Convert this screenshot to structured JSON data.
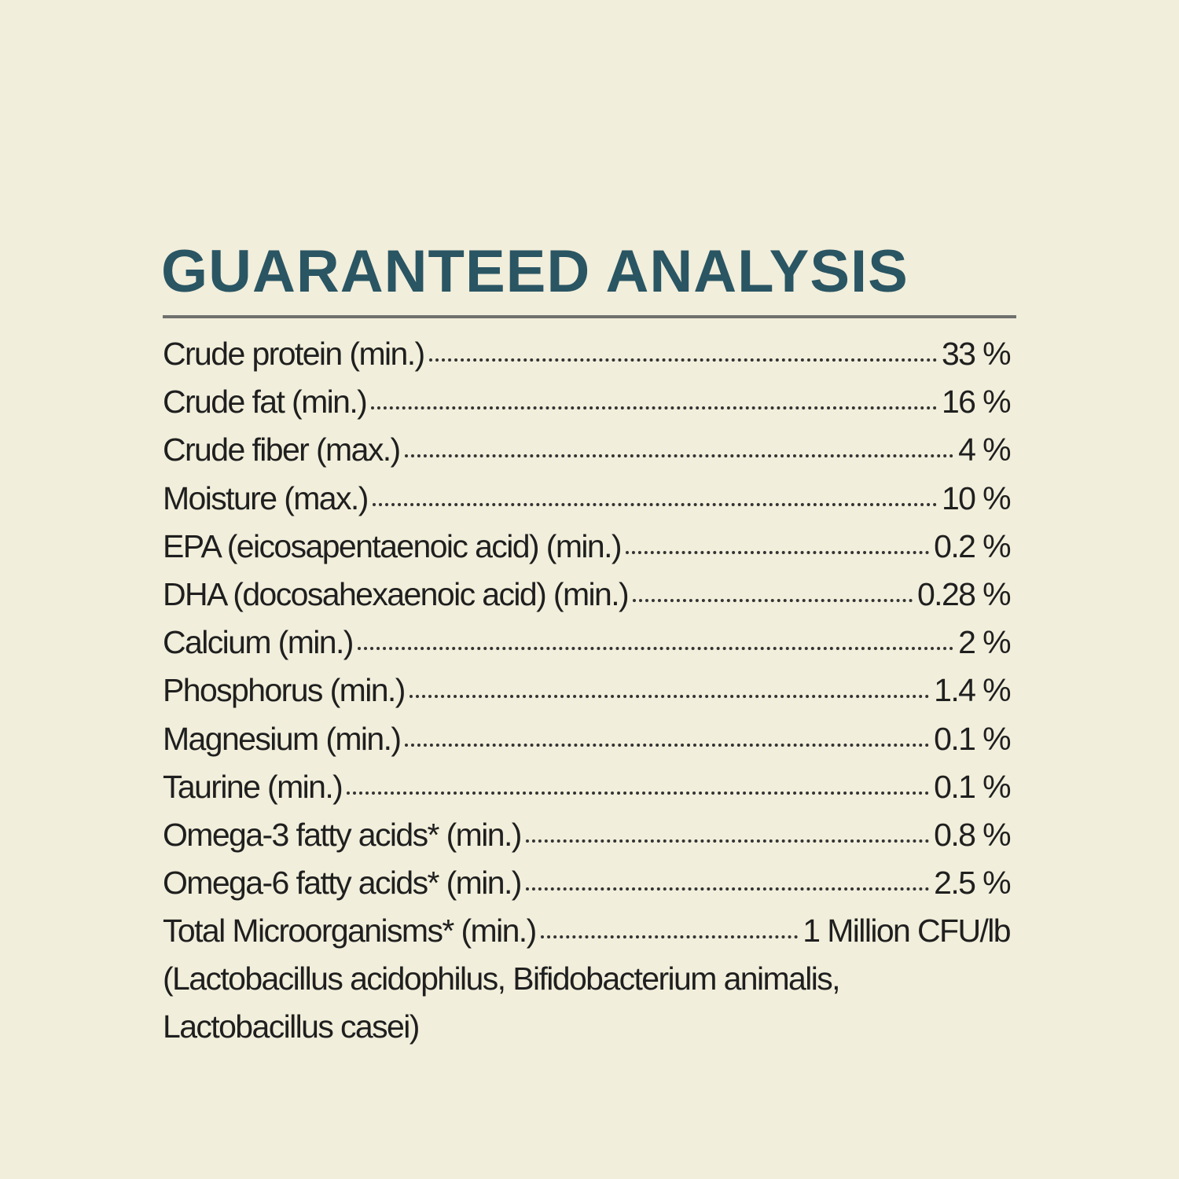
{
  "title": "GUARANTEED ANALYSIS",
  "colors": {
    "background": "#f1eedb",
    "title": "#2a5563",
    "text": "#1f1f1f",
    "rule": "#6f716e"
  },
  "rows": [
    {
      "label": "Crude protein (min.)",
      "value": "33 %"
    },
    {
      "label": "Crude fat (min.)",
      "value": "16 %"
    },
    {
      "label": "Crude fiber (max.)",
      "value": "4 %"
    },
    {
      "label": "Moisture (max.)",
      "value": "10 %"
    },
    {
      "label": "EPA (eicosapentaenoic acid) (min.)",
      "value": "0.2 %"
    },
    {
      "label": "DHA (docosahexaenoic acid) (min.)",
      "value": "0.28 %"
    },
    {
      "label": "Calcium (min.)",
      "value": "2 %"
    },
    {
      "label": "Phosphorus (min.)",
      "value": "1.4 %"
    },
    {
      "label": "Magnesium (min.)",
      "value": "0.1 %"
    },
    {
      "label": "Taurine (min.)",
      "value": "0.1 %"
    },
    {
      "label": "Omega-3 fatty acids* (min.)",
      "value": "0.8 %"
    },
    {
      "label": "Omega-6 fatty acids* (min.)",
      "value": "2.5 %"
    },
    {
      "label": "Total Microorganisms* (min.)",
      "value": "1 Million CFU/lb"
    }
  ],
  "notes": [
    "(Lactobacillus acidophilus, Bifidobacterium animalis,",
    "Lactobacillus casei)"
  ]
}
